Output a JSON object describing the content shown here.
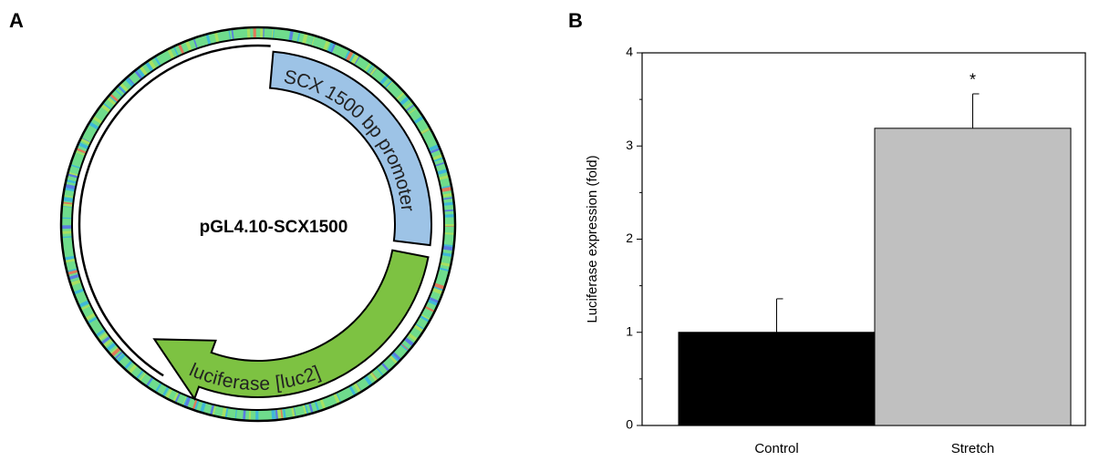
{
  "panel_labels": [
    "A",
    "B"
  ],
  "plasmid": {
    "name": "pGL4.10-SCX1500",
    "features": [
      "SCX 1500 bp promoter",
      "luciferase [luc2]"
    ]
  },
  "chart_data": {
    "type": "bar",
    "ylabel": "Luciferase expression (fold)",
    "categories": [
      "Control",
      "Stretch"
    ],
    "values": [
      1.0,
      3.19
    ],
    "errors": [
      0.36,
      0.37
    ],
    "colors": [
      "#000000",
      "#c0c0c0"
    ],
    "ylim": [
      0,
      4
    ],
    "yticks": [
      0,
      1,
      2,
      3,
      4
    ],
    "minor_yticks": [
      0.5,
      1.5,
      2.5,
      3.5
    ],
    "annotation": {
      "text": "*",
      "category": "Stretch"
    }
  }
}
